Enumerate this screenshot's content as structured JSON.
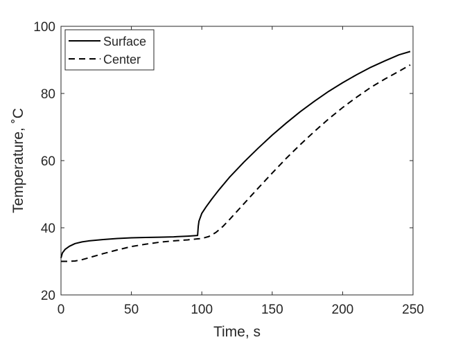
{
  "chart_data": {
    "type": "line",
    "title": "",
    "xlabel": "Time, s",
    "ylabel": "Temperature, ˚C",
    "xlim": [
      0,
      250
    ],
    "ylim": [
      20,
      100
    ],
    "xticks": [
      0,
      50,
      100,
      150,
      200,
      250
    ],
    "yticks": [
      20,
      40,
      60,
      80,
      100
    ],
    "xtick_labels": [
      "0",
      "50",
      "100",
      "150",
      "200",
      "250"
    ],
    "ytick_labels": [
      "20",
      "40",
      "60",
      "80",
      "100"
    ],
    "grid": false,
    "legend_position": "top-left",
    "series": [
      {
        "name": "Surface",
        "style": "solid",
        "color": "#000000",
        "x": [
          0,
          1,
          3,
          6,
          10,
          15,
          20,
          30,
          40,
          50,
          60,
          70,
          80,
          90,
          97,
          97.5,
          98,
          100,
          103,
          107,
          112,
          120,
          130,
          140,
          150,
          160,
          170,
          180,
          190,
          200,
          210,
          220,
          230,
          240,
          248
        ],
        "y": [
          31.0,
          32.5,
          33.6,
          34.5,
          35.3,
          35.8,
          36.1,
          36.5,
          36.8,
          37.0,
          37.1,
          37.2,
          37.3,
          37.5,
          37.7,
          40.5,
          42.0,
          44.3,
          46.2,
          48.5,
          51.2,
          55.2,
          59.6,
          63.7,
          67.6,
          71.2,
          74.6,
          77.7,
          80.6,
          83.2,
          85.6,
          87.8,
          89.7,
          91.5,
          92.5
        ]
      },
      {
        "name": "Center",
        "style": "dashed",
        "color": "#000000",
        "x": [
          0,
          5,
          10,
          15,
          20,
          30,
          40,
          50,
          60,
          70,
          80,
          90,
          97,
          100,
          105,
          110,
          115,
          120,
          130,
          140,
          150,
          160,
          170,
          180,
          190,
          200,
          210,
          220,
          230,
          240,
          248
        ],
        "y": [
          30.0,
          30.0,
          30.1,
          30.5,
          31.1,
          32.3,
          33.4,
          34.4,
          35.1,
          35.7,
          36.1,
          36.4,
          36.7,
          36.8,
          37.4,
          38.6,
          40.4,
          42.6,
          47.2,
          51.8,
          56.3,
          60.7,
          64.8,
          68.7,
          72.4,
          75.8,
          78.9,
          81.8,
          84.3,
          86.6,
          88.5
        ]
      }
    ]
  }
}
